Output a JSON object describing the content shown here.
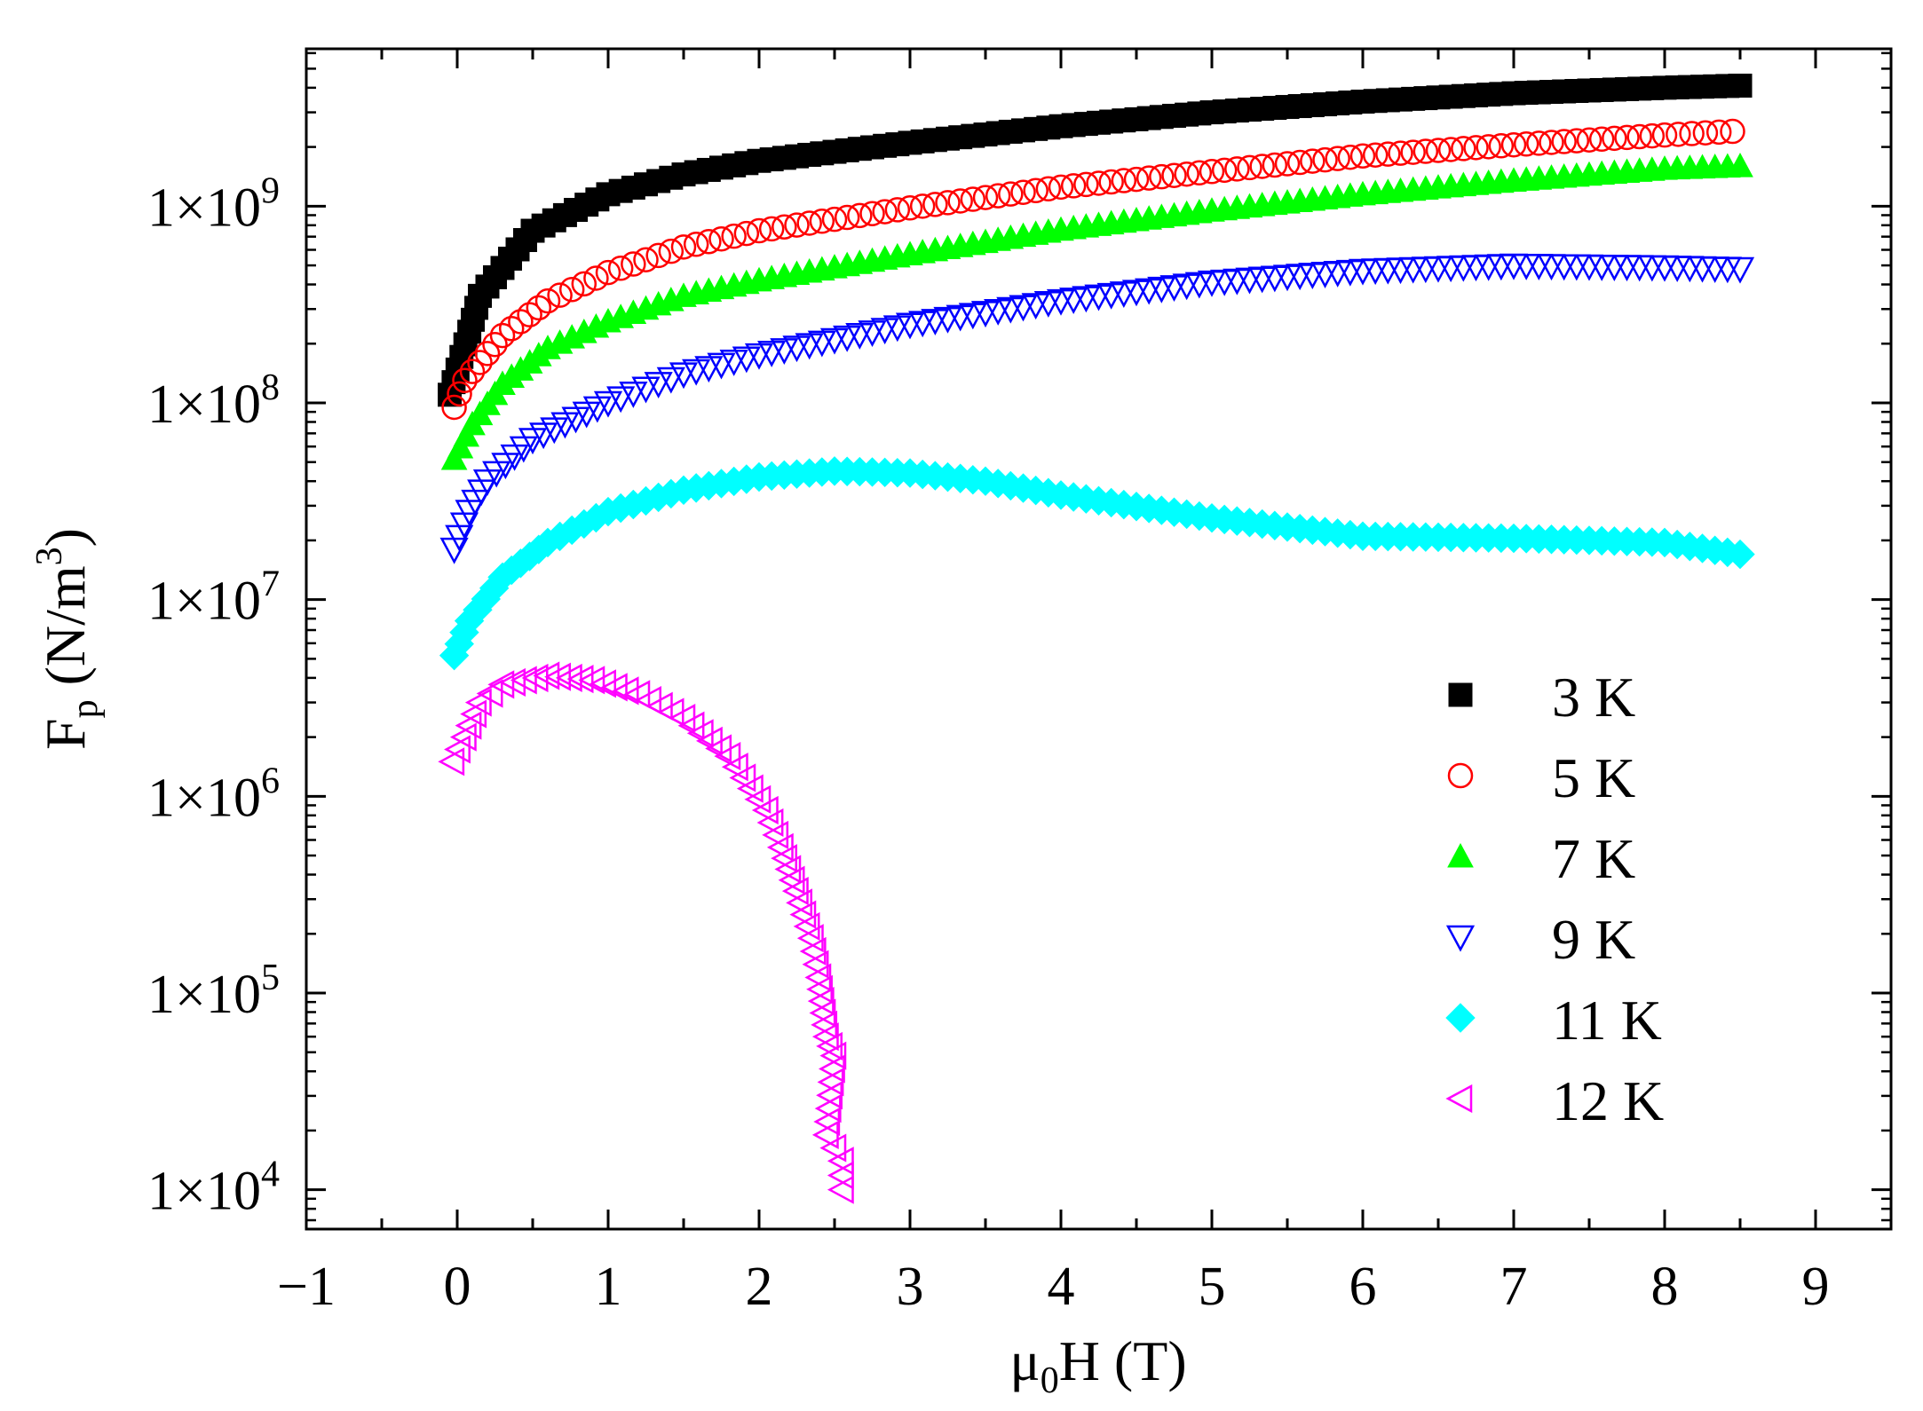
{
  "chart_data": {
    "type": "scatter",
    "title": "",
    "xlabel": {
      "base": "μ",
      "sub": "0",
      "rest": "H (T)"
    },
    "ylabel": {
      "base": "F",
      "sub": "p",
      "mid": " (N/m",
      "sup": "3",
      "end": ")"
    },
    "xlim": [
      -1,
      9.5
    ],
    "ylim_log10": [
      3.8,
      9.8
    ],
    "y_scale": "log",
    "x_ticks": [
      -1,
      0,
      1,
      2,
      3,
      4,
      5,
      6,
      7,
      8,
      9
    ],
    "x_tick_labels": [
      "−1",
      "0",
      "1",
      "2",
      "3",
      "4",
      "5",
      "6",
      "7",
      "8",
      "9"
    ],
    "y_ticks": [
      {
        "exp": 4,
        "label": "1×10",
        "sup": "4"
      },
      {
        "exp": 5,
        "label": "1×10",
        "sup": "5"
      },
      {
        "exp": 6,
        "label": "1×10",
        "sup": "6"
      },
      {
        "exp": 7,
        "label": "1×10",
        "sup": "7"
      },
      {
        "exp": 8,
        "label": "1×10",
        "sup": "8"
      },
      {
        "exp": 9,
        "label": "1×10",
        "sup": "9"
      }
    ],
    "legend_position": "right-center",
    "series": [
      {
        "name": "3 K",
        "marker": "square-filled",
        "color": "#000000",
        "points": [
          [
            -0.05,
            110000000.0
          ],
          [
            0.08,
            230000000.0
          ],
          [
            0.15,
            350000000.0
          ],
          [
            0.5,
            750000000.0
          ],
          [
            1,
            1150000000.0
          ],
          [
            1.5,
            1450000000.0
          ],
          [
            2,
            1700000000.0
          ],
          [
            3,
            2100000000.0
          ],
          [
            4,
            2550000000.0
          ],
          [
            5,
            3000000000.0
          ],
          [
            6,
            3400000000.0
          ],
          [
            7,
            3750000000.0
          ],
          [
            8,
            4000000000.0
          ],
          [
            8.5,
            4100000000.0
          ]
        ]
      },
      {
        "name": "5 K",
        "marker": "circle-open",
        "color": "#ff0000",
        "points": [
          [
            -0.02,
            95000000.0
          ],
          [
            0.05,
            130000000.0
          ],
          [
            0.3,
            220000000.0
          ],
          [
            0.6,
            330000000.0
          ],
          [
            1,
            460000000.0
          ],
          [
            1.5,
            620000000.0
          ],
          [
            2,
            750000000.0
          ],
          [
            3,
            980000000.0
          ],
          [
            4,
            1250000000.0
          ],
          [
            5,
            1500000000.0
          ],
          [
            6,
            1800000000.0
          ],
          [
            7,
            2050000000.0
          ],
          [
            8,
            2300000000.0
          ],
          [
            8.45,
            2400000000.0
          ]
        ]
      },
      {
        "name": "7 K",
        "marker": "triangle-up-filled",
        "color": "#00ff00",
        "points": [
          [
            -0.02,
            52000000.0
          ],
          [
            0.1,
            78000000.0
          ],
          [
            0.3,
            125000000.0
          ],
          [
            0.6,
            190000000.0
          ],
          [
            1,
            260000000.0
          ],
          [
            1.5,
            350000000.0
          ],
          [
            2,
            420000000.0
          ],
          [
            3,
            570000000.0
          ],
          [
            4,
            760000000.0
          ],
          [
            5,
            950000000.0
          ],
          [
            6,
            1150000000.0
          ],
          [
            7,
            1350000000.0
          ],
          [
            8,
            1550000000.0
          ],
          [
            8.5,
            1600000000.0
          ]
        ]
      },
      {
        "name": "9 K",
        "marker": "triangle-down-open",
        "color": "#0000ff",
        "points": [
          [
            -0.02,
            18000000.0
          ],
          [
            0.08,
            28000000.0
          ],
          [
            0.2,
            40000000.0
          ],
          [
            0.5,
            65000000.0
          ],
          [
            1,
            100000000.0
          ],
          [
            1.5,
            140000000.0
          ],
          [
            2,
            175000000.0
          ],
          [
            3,
            250000000.0
          ],
          [
            4,
            330000000.0
          ],
          [
            5,
            410000000.0
          ],
          [
            6,
            470000000.0
          ],
          [
            7,
            500000000.0
          ],
          [
            8,
            490000000.0
          ],
          [
            8.5,
            480000000.0
          ]
        ]
      },
      {
        "name": "11 K",
        "marker": "diamond-filled",
        "color": "#00ffff",
        "points": [
          [
            -0.02,
            5200000.0
          ],
          [
            0.08,
            7800000.0
          ],
          [
            0.3,
            13000000.0
          ],
          [
            0.6,
            19500000.0
          ],
          [
            1,
            28000000.0
          ],
          [
            1.5,
            36000000.0
          ],
          [
            2,
            42000000.0
          ],
          [
            2.5,
            45000000.0
          ],
          [
            3,
            44000000.0
          ],
          [
            3.5,
            40000000.0
          ],
          [
            4,
            34000000.0
          ],
          [
            5,
            26000000.0
          ],
          [
            6,
            21000000.0
          ],
          [
            7,
            20500000.0
          ],
          [
            8,
            19500000.0
          ],
          [
            8.5,
            17000000.0
          ]
        ]
      },
      {
        "name": "12 K",
        "marker": "triangle-left-open",
        "color": "#ff00ff",
        "points": [
          [
            -0.03,
            1500000.0
          ],
          [
            0.05,
            2000000.0
          ],
          [
            0.15,
            3000000.0
          ],
          [
            0.3,
            3700000.0
          ],
          [
            0.6,
            4100000.0
          ],
          [
            0.9,
            3900000.0
          ],
          [
            1.2,
            3300000.0
          ],
          [
            1.5,
            2500000.0
          ],
          [
            1.8,
            1600000.0
          ],
          [
            2.05,
            850000.0
          ],
          [
            2.15,
            550000.0
          ],
          [
            2.25,
            330000.0
          ],
          [
            2.35,
            190000.0
          ],
          [
            2.4,
            120000.0
          ],
          [
            2.45,
            60000.0
          ],
          [
            2.5,
            48000.0
          ],
          [
            2.45,
            19000.0
          ],
          [
            2.55,
            14000.0
          ],
          [
            2.55,
            10000.0
          ]
        ]
      }
    ]
  }
}
